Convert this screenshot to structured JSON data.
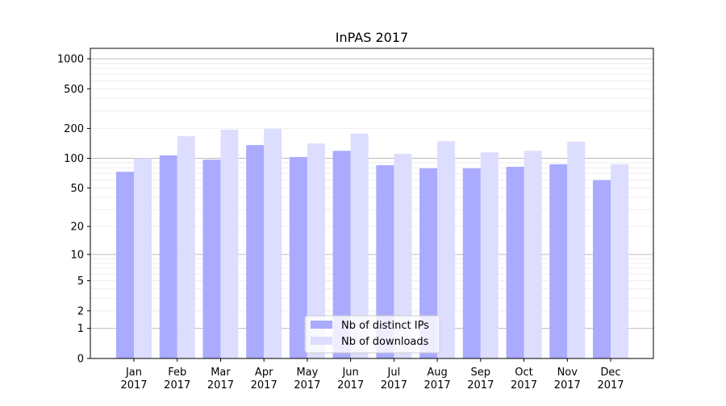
{
  "chart_data": {
    "type": "bar",
    "title": "InPAS 2017",
    "xlabel": "",
    "ylabel": "",
    "yscale": "log(y+1)",
    "ylim": [
      0,
      1273
    ],
    "yticks": [
      0,
      1,
      2,
      5,
      10,
      20,
      50,
      100,
      200,
      500,
      1000
    ],
    "grid": true,
    "legend_position": "lower-center",
    "categories": [
      "Jan\n2017",
      "Feb\n2017",
      "Mar\n2017",
      "Apr\n2017",
      "May\n2017",
      "Jun\n2017",
      "Jul\n2017",
      "Aug\n2017",
      "Sep\n2017",
      "Oct\n2017",
      "Nov\n2017",
      "Dec\n2017"
    ],
    "series": [
      {
        "name": "Nb of distinct IPs",
        "color": "#aaaaff",
        "values": [
          73,
          107,
          97,
          136,
          103,
          119,
          85,
          79,
          79,
          82,
          87,
          60
        ]
      },
      {
        "name": "Nb of downloads",
        "color": "#ddddff",
        "values": [
          100,
          167,
          194,
          198,
          141,
          177,
          111,
          149,
          115,
          119,
          147,
          87
        ]
      }
    ]
  }
}
